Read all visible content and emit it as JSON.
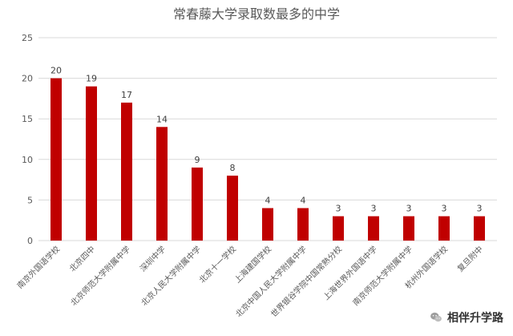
{
  "chart_data": {
    "type": "bar",
    "title": "常春藤大学录取数最多的中学",
    "categories": [
      "南京外国语学校",
      "北京四中",
      "北京师范大学附属中学",
      "深圳中学",
      "北京人民大学附属中学",
      "北京十一学校",
      "上海建国学校",
      "北京中国人民大学附属中学",
      "世界银谷学院中国常熟分校",
      "上海世界外国语中学",
      "南京师范大学附属中学",
      "杭州外国语学校",
      "复旦附中"
    ],
    "values": [
      20,
      19,
      17,
      14,
      9,
      8,
      4,
      4,
      3,
      3,
      3,
      3,
      3
    ],
    "ylim": [
      0,
      25
    ],
    "yticks": [
      0,
      5,
      10,
      15,
      20,
      25
    ],
    "grid": true,
    "legend": "none",
    "xlabel": "",
    "ylabel": ""
  },
  "colors": {
    "bar": "#c00000",
    "grid": "#d9d9d9",
    "axis_text": "#595959",
    "background": "#ffffff"
  },
  "watermark": {
    "text": "相伴升学路",
    "icon": "wechat-icon"
  }
}
